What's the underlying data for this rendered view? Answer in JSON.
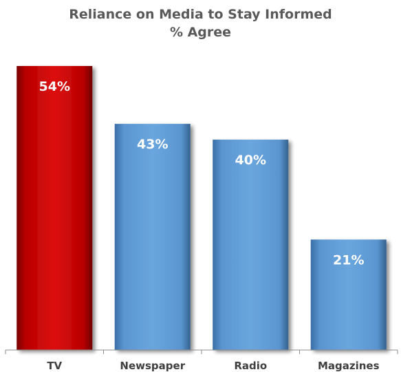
{
  "chart_data": {
    "type": "bar",
    "title": "Reliance on Media to Stay Informed",
    "subtitle": "% Agree",
    "categories": [
      "TV",
      "Newspaper",
      "Radio",
      "Magazines"
    ],
    "values": [
      54,
      43,
      40,
      21
    ],
    "value_labels": [
      "54%",
      "43%",
      "40%",
      "21%"
    ],
    "colors": [
      "#c00000",
      "#5b9bd5",
      "#5b9bd5",
      "#5b9bd5"
    ],
    "ylim": [
      0,
      54
    ],
    "grid": false,
    "legend": "none"
  }
}
